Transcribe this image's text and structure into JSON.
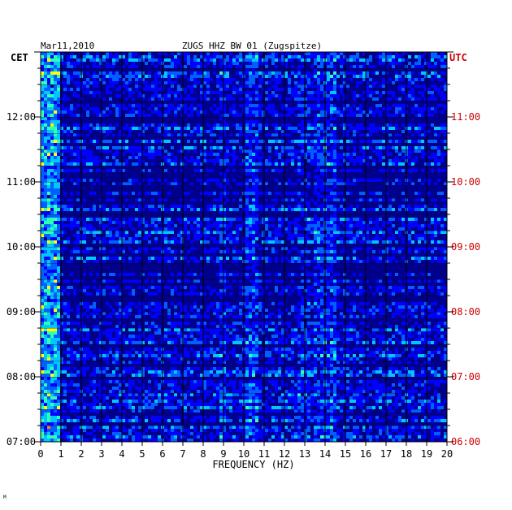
{
  "chart_data": {
    "type": "heatmap",
    "date": "Mar11,2010",
    "title": "ZUGS HHZ BW 01 (Zugspitze)",
    "xlabel": "FREQUENCY (HZ)",
    "left_axis_label": "CET",
    "right_axis_label": "UTC",
    "xlim": [
      0,
      20
    ],
    "x_ticks": [
      "0",
      "1",
      "2",
      "3",
      "4",
      "5",
      "6",
      "7",
      "8",
      "9",
      "10",
      "11",
      "12",
      "13",
      "14",
      "15",
      "16",
      "17",
      "18",
      "19",
      "20"
    ],
    "left_ticks": [
      "12:00",
      "11:00",
      "10:00",
      "09:00",
      "08:00",
      "07:00"
    ],
    "right_ticks": [
      "11:00",
      "10:00",
      "09:00",
      "08:00",
      "07:00",
      "06:00"
    ],
    "time_range_cet": [
      "07:00",
      "13:00"
    ],
    "grid": true,
    "colorscale": [
      "#00008b",
      "#0000ff",
      "#0060ff",
      "#00c8ff",
      "#30ffb0",
      "#ffff00",
      "#ff8000",
      "#ff0000"
    ],
    "right_axis_color": "#cc0000",
    "footer_mark": "M"
  }
}
